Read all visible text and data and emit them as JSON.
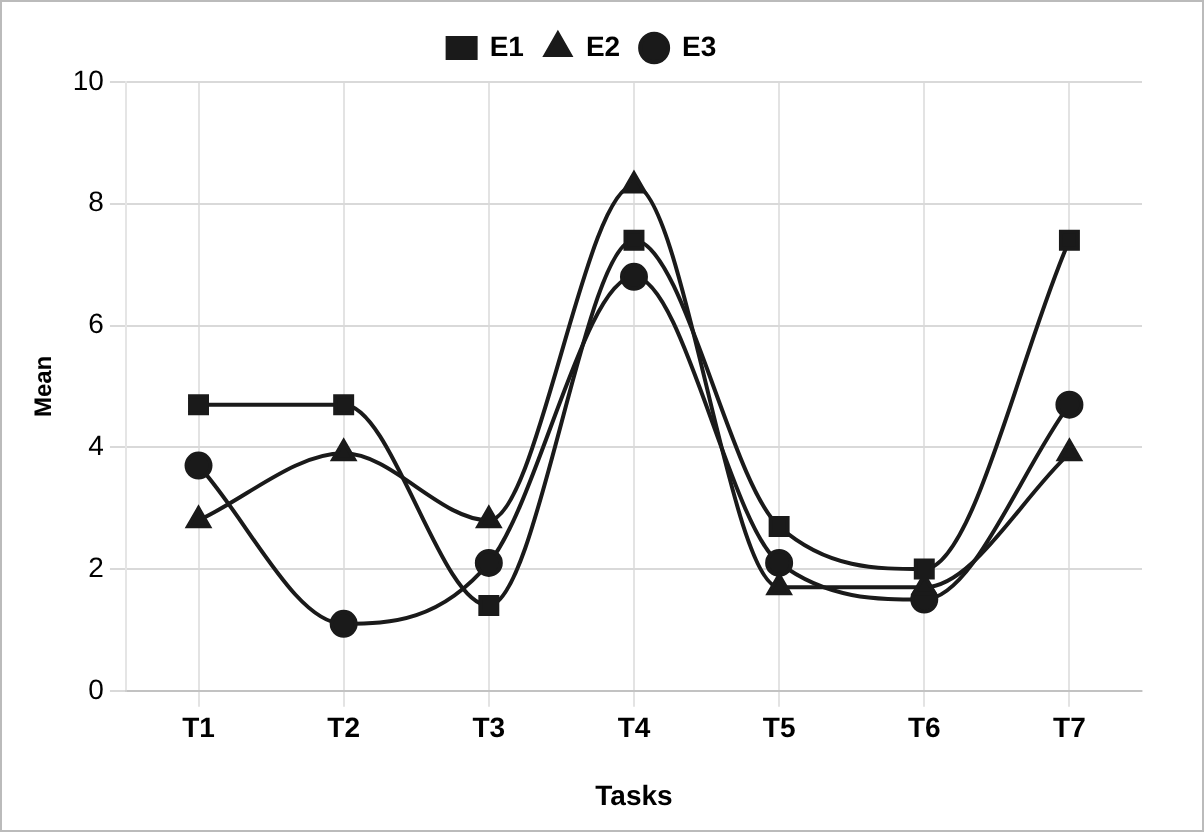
{
  "chart_data": {
    "type": "line",
    "xlabel": "Tasks",
    "ylabel": "Mean",
    "categories": [
      "T1",
      "T2",
      "T3",
      "T4",
      "T5",
      "T6",
      "T7"
    ],
    "series": [
      {
        "name": "E1",
        "color": "#1a1a1a",
        "marker": "square",
        "values": [
          4.7,
          4.7,
          1.4,
          7.4,
          2.7,
          2.0,
          7.4
        ]
      },
      {
        "name": "E2",
        "color": "#1a1a1a",
        "marker": "triangle",
        "values": [
          2.8,
          3.9,
          2.8,
          8.3,
          1.7,
          1.7,
          3.9
        ]
      },
      {
        "name": "E3",
        "color": "#1a1a1a",
        "marker": "circle",
        "values": [
          3.7,
          1.1,
          2.1,
          6.8,
          2.1,
          1.5,
          4.7
        ]
      }
    ],
    "ylim": [
      0,
      10
    ],
    "yticks": [
      0,
      2,
      4,
      6,
      8,
      10
    ],
    "grid": true,
    "legend": "top"
  }
}
